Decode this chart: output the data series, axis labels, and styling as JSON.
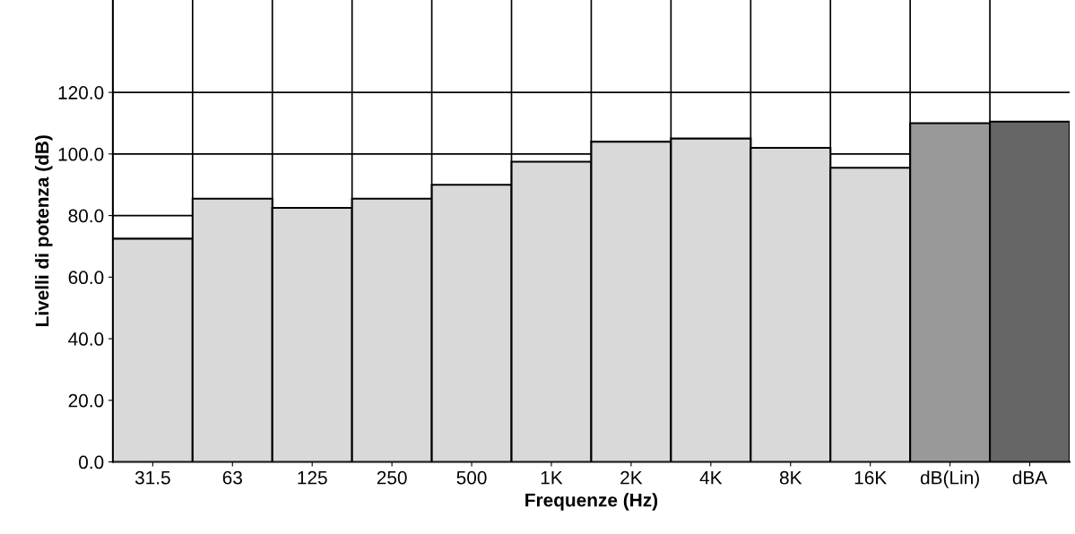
{
  "chart_data": {
    "type": "bar",
    "xlabel": "Frequenze (Hz)",
    "ylabel": "Livelli di potenza (dB)",
    "categories": [
      "31.5",
      "63",
      "125",
      "250",
      "500",
      "1K",
      "2K",
      "4K",
      "8K",
      "16K",
      "dB(Lin)",
      "dBA"
    ],
    "values": [
      72.5,
      85.5,
      82.5,
      85.5,
      90,
      97.5,
      104,
      105,
      102,
      95.5,
      110,
      110.5
    ],
    "colors": [
      "#d9d9d9",
      "#d9d9d9",
      "#d9d9d9",
      "#d9d9d9",
      "#d9d9d9",
      "#d9d9d9",
      "#d9d9d9",
      "#d9d9d9",
      "#d9d9d9",
      "#d9d9d9",
      "#999999",
      "#666666"
    ],
    "ylim": [
      0,
      150
    ],
    "yticks": [
      {
        "value": 0,
        "label": "0.0"
      },
      {
        "value": 20,
        "label": "20.0"
      },
      {
        "value": 40,
        "label": "40.0"
      },
      {
        "value": 60,
        "label": "60.0"
      },
      {
        "value": 80,
        "label": "80.0"
      },
      {
        "value": 100,
        "label": "100.0"
      },
      {
        "value": 120,
        "label": "120.0"
      }
    ],
    "grid": true
  }
}
